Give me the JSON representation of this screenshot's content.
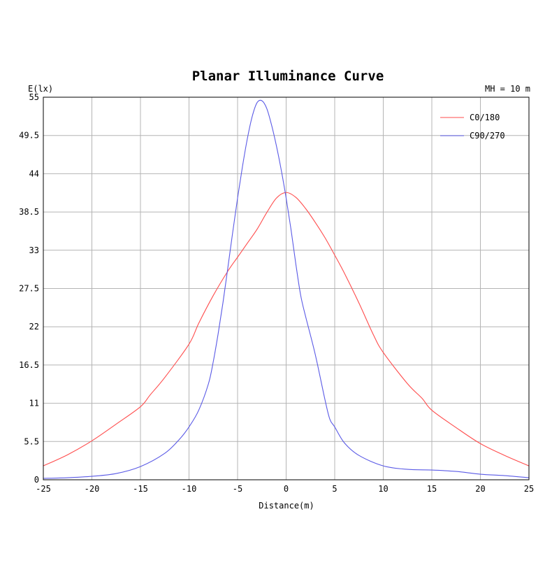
{
  "chart_data": {
    "type": "line",
    "title": "Planar Illuminance Curve",
    "mounting_height_label": "MH = 10 m",
    "xlabel": "Distance(m)",
    "ylabel": "E(lx)",
    "xlim": [
      -25,
      25
    ],
    "ylim": [
      0,
      55
    ],
    "x_ticks": [
      "-25",
      "-20",
      "-15",
      "-10",
      "-5",
      "0",
      "5",
      "10",
      "15",
      "20",
      "25"
    ],
    "y_ticks": [
      "0",
      "5.5",
      "11",
      "16.5",
      "22",
      "27.5",
      "33",
      "38.5",
      "44",
      "49.5",
      "55"
    ],
    "x_tick_values": [
      -25,
      -20,
      -15,
      -10,
      -5,
      0,
      5,
      10,
      15,
      20,
      25
    ],
    "y_tick_values": [
      0,
      5.5,
      11,
      16.5,
      22,
      27.5,
      33,
      38.5,
      44,
      49.5,
      55
    ],
    "grid": true,
    "legend_position": "top-right",
    "series": [
      {
        "name": "C0/180",
        "color": "#ff4d4d",
        "x": [
          -25,
          -22.5,
          -20,
          -17.5,
          -15,
          -14,
          -12.5,
          -10,
          -9,
          -7.5,
          -6,
          -5,
          -4,
          -3,
          -2,
          -1,
          0,
          1,
          2,
          3,
          4,
          5,
          6,
          7.5,
          9,
          10,
          12.5,
          14,
          15,
          17.5,
          20,
          22.5,
          25
        ],
        "y": [
          2.0,
          3.6,
          5.6,
          8.0,
          10.5,
          12.2,
          14.7,
          19.5,
          22.5,
          26.5,
          30.0,
          32.0,
          34.0,
          36.0,
          38.4,
          40.5,
          41.3,
          40.6,
          39.0,
          37.0,
          34.8,
          32.3,
          29.7,
          25.4,
          20.8,
          18.3,
          13.8,
          11.7,
          10.0,
          7.5,
          5.2,
          3.5,
          2.0
        ]
      },
      {
        "name": "C90/270",
        "color": "#5a5ae6",
        "x": [
          -25,
          -22.5,
          -20,
          -17.5,
          -15,
          -12.5,
          -11,
          -10,
          -9,
          -8,
          -7.5,
          -7,
          -6.5,
          -6,
          -5.5,
          -5,
          -4.5,
          -4,
          -3.5,
          -3,
          -2.5,
          -2,
          -1.5,
          -1,
          -0.5,
          0,
          0.5,
          1,
          1.5,
          2,
          3,
          4,
          4.5,
          5,
          6,
          7.5,
          10,
          12.5,
          15,
          17.5,
          20,
          22.5,
          25
        ],
        "y": [
          0.2,
          0.3,
          0.5,
          0.9,
          1.9,
          3.8,
          5.8,
          7.6,
          10.0,
          13.8,
          17.0,
          21.0,
          25.5,
          30.5,
          35.6,
          40.5,
          45.0,
          49.0,
          52.2,
          54.2,
          54.5,
          53.4,
          51.0,
          48.0,
          44.5,
          40.5,
          36.0,
          31.0,
          26.5,
          23.5,
          18.0,
          11.5,
          8.7,
          7.6,
          5.3,
          3.5,
          2.0,
          1.5,
          1.4,
          1.2,
          0.8,
          0.6,
          0.3
        ]
      }
    ]
  }
}
